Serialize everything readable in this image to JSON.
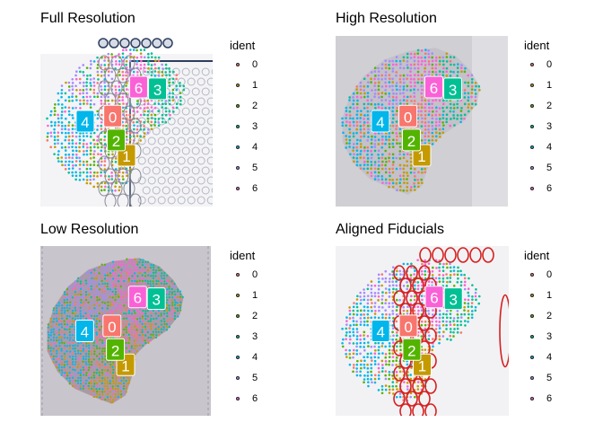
{
  "chart_data": [
    {
      "type": "scatter",
      "title": "Full Resolution",
      "legend_title": "ident",
      "clusters": [
        "0",
        "1",
        "2",
        "3",
        "4",
        "5",
        "6"
      ],
      "cluster_colors": [
        "#F8766D",
        "#C49A00",
        "#53B400",
        "#00C094",
        "#00B6EB",
        "#A58AFF",
        "#FB61D7"
      ],
      "background": "full"
    },
    {
      "type": "scatter",
      "title": "High Resolution",
      "legend_title": "ident",
      "clusters": [
        "0",
        "1",
        "2",
        "3",
        "4",
        "5",
        "6"
      ],
      "cluster_colors": [
        "#F8766D",
        "#C49A00",
        "#53B400",
        "#00C094",
        "#00B6EB",
        "#A58AFF",
        "#FB61D7"
      ],
      "background": "high"
    },
    {
      "type": "scatter",
      "title": "Low Resolution",
      "legend_title": "ident",
      "clusters": [
        "0",
        "1",
        "2",
        "3",
        "4",
        "5",
        "6"
      ],
      "cluster_colors": [
        "#F8766D",
        "#C49A00",
        "#53B400",
        "#00C094",
        "#00B6EB",
        "#A58AFF",
        "#FB61D7"
      ],
      "background": "low"
    },
    {
      "type": "scatter",
      "title": "Aligned Fiducials",
      "legend_title": "ident",
      "clusters": [
        "0",
        "1",
        "2",
        "3",
        "4",
        "5",
        "6"
      ],
      "cluster_colors": [
        "#F8766D",
        "#C49A00",
        "#53B400",
        "#00C094",
        "#00B6EB",
        "#A58AFF",
        "#FB61D7"
      ],
      "background": "fiducials"
    }
  ]
}
